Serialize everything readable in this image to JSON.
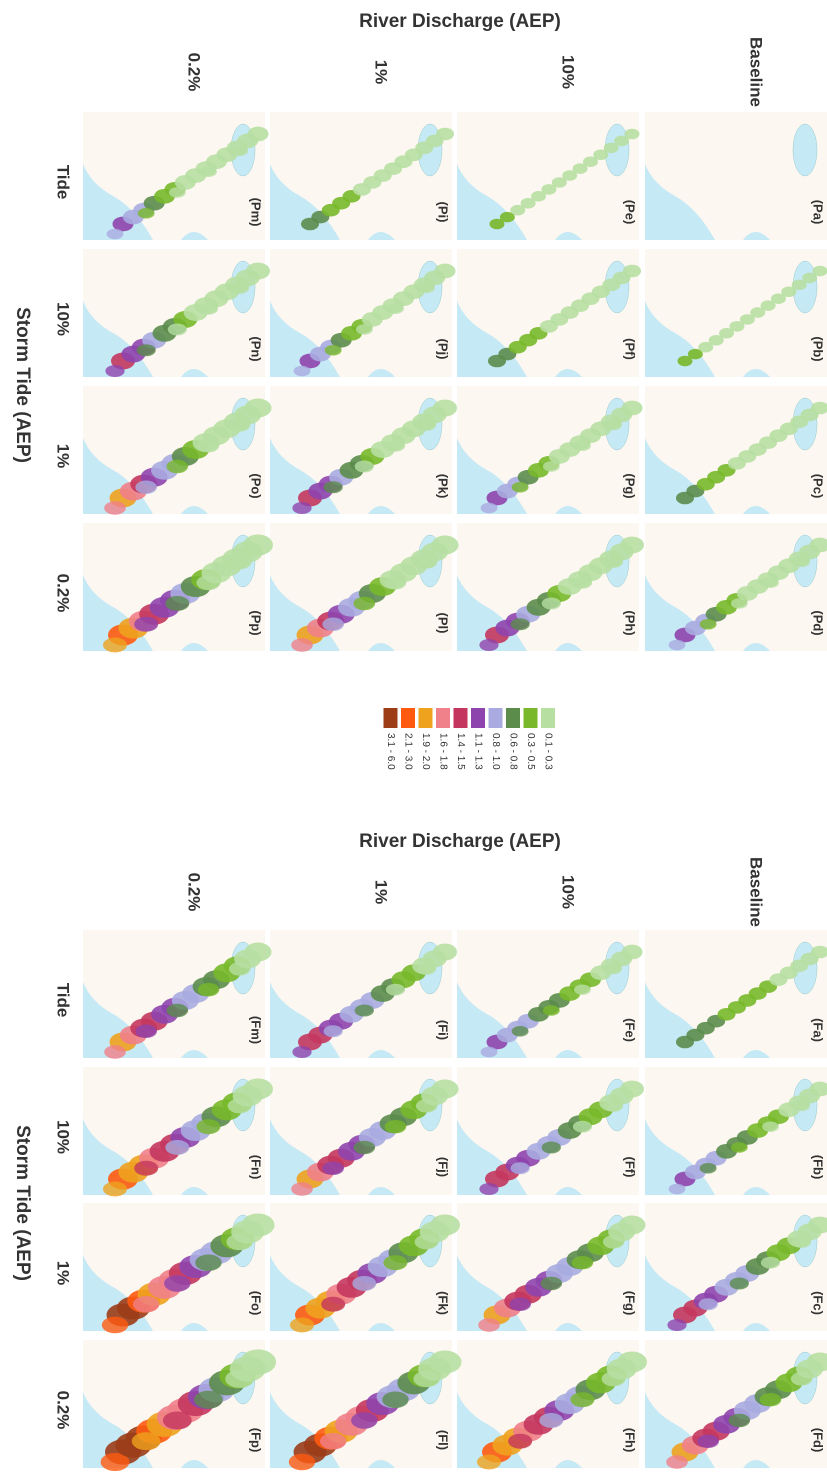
{
  "figures": [
    {
      "discharge_title": "River Discharge (AEP)",
      "tide_title": "Storm Tide (AEP)",
      "discharge_levels": [
        "Baseline",
        "10%",
        "1%",
        "0.2%"
      ],
      "tide_levels": [
        "Tide",
        "10%",
        "1%",
        "0.2%"
      ],
      "panels": [
        [
          "(Pa)",
          "(Pb)",
          "(Pc)",
          "(Pd)"
        ],
        [
          "(Pe)",
          "(Pf)",
          "(Pg)",
          "(Ph)"
        ],
        [
          "(Pi)",
          "(Pj)",
          "(Pk)",
          "(Pl)"
        ],
        [
          "(Pm)",
          "(Pn)",
          "(Po)",
          "(Pp)"
        ]
      ]
    },
    {
      "discharge_title": "River Discharge (AEP)",
      "tide_title": "Storm Tide (AEP)",
      "discharge_levels": [
        "Baseline",
        "10%",
        "1%",
        "0.2%"
      ],
      "tide_levels": [
        "Tide",
        "10%",
        "1%",
        "0.2%"
      ],
      "panels": [
        [
          "(Fa)",
          "(Fb)",
          "(Fc)",
          "(Fd)"
        ],
        [
          "(Fe)",
          "(Ff)",
          "(Fg)",
          "(Fh)"
        ],
        [
          "(Fi)",
          "(Fj)",
          "(Fk)",
          "(Fl)"
        ],
        [
          "(Fm)",
          "(Fn)",
          "(Fo)",
          "(Fp)"
        ]
      ]
    }
  ],
  "legend": {
    "classes": [
      {
        "label": "0.1 - 0.3",
        "color": "#b7dfa2"
      },
      {
        "label": "0.3 - 0.5",
        "color": "#78b82a"
      },
      {
        "label": "0.6 - 0.8",
        "color": "#5b8c4c"
      },
      {
        "label": "0.8 - 1.0",
        "color": "#a9abe0"
      },
      {
        "label": "1.1 - 1.3",
        "color": "#8e44ad"
      },
      {
        "label": "1.4 - 1.5",
        "color": "#c4365e"
      },
      {
        "label": "1.6 - 1.8",
        "color": "#f0808a"
      },
      {
        "label": "1.9 - 2.0",
        "color": "#eea21e"
      },
      {
        "label": "2.1 - 3.0",
        "color": "#ff5a10"
      },
      {
        "label": "3.1 - 6.0",
        "color": "#9c3d18"
      }
    ]
  }
}
